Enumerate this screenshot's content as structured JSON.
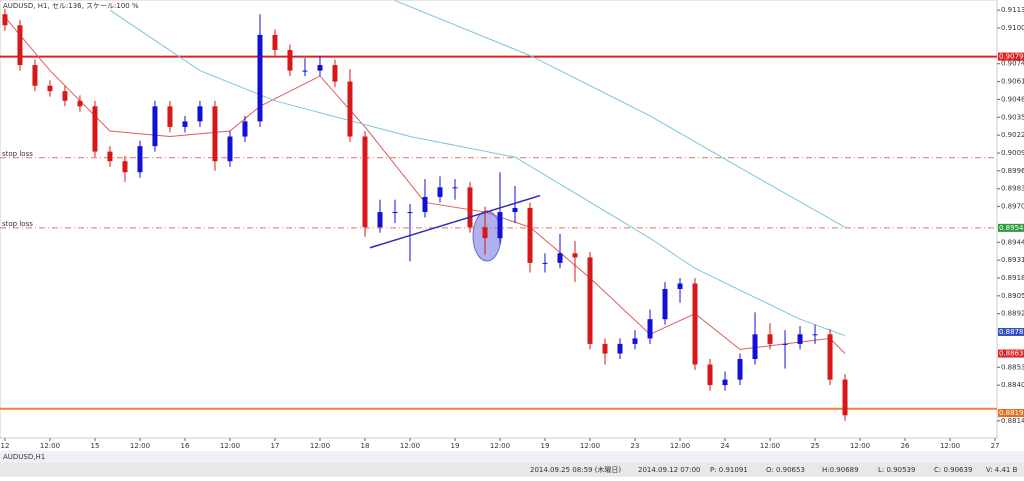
{
  "header": "AUDUSD, H1, セル:136, スケール:100 %",
  "tab": "AUDUSD,H1",
  "status": [
    "2014.09.25 08:59 (木曜日)",
    "2014.09.12 07:00",
    "P: 0.91091",
    "O: 0.90653",
    "H:0.90689",
    "L: 0.90539",
    "C: 0.90639",
    "V: 4.41 B"
  ],
  "chart_data": {
    "type": "candlestick",
    "xlim": [
      -0.33,
      66.13
    ],
    "ylim": [
      0.88015,
      0.91204
    ],
    "up_color": "#1010d8",
    "down_color": "#d81818",
    "xticks": [
      {
        "value": 0,
        "label": "12"
      },
      {
        "value": 3,
        "label": "12:00"
      },
      {
        "value": 6,
        "label": "15"
      },
      {
        "value": 9,
        "label": "12:00"
      },
      {
        "value": 12,
        "label": "16"
      },
      {
        "value": 15,
        "label": "12:00"
      },
      {
        "value": 18,
        "label": "17"
      },
      {
        "value": 21,
        "label": "12:00"
      },
      {
        "value": 24,
        "label": "18"
      },
      {
        "value": 27,
        "label": "12:00"
      },
      {
        "value": 30,
        "label": "19"
      },
      {
        "value": 33,
        "label": "12:00"
      },
      {
        "value": 36,
        "label": "19"
      },
      {
        "value": 39,
        "label": "12:00"
      },
      {
        "value": 42,
        "label": "23"
      },
      {
        "value": 45,
        "label": "12:00"
      },
      {
        "value": 48,
        "label": "24"
      },
      {
        "value": 51,
        "label": "12:00"
      },
      {
        "value": 54,
        "label": "25"
      },
      {
        "value": 57,
        "label": "12:00"
      },
      {
        "value": 60,
        "label": "26"
      },
      {
        "value": 63,
        "label": "12:00"
      },
      {
        "value": 66,
        "label": "27"
      }
    ],
    "yticks": [
      {
        "value": 0.9113,
        "label": "0.91130"
      },
      {
        "value": 0.91,
        "label": "0.91000"
      },
      {
        "value": 0.9074,
        "label": "0.90740"
      },
      {
        "value": 0.9061,
        "label": "0.90610"
      },
      {
        "value": 0.9048,
        "label": "0.90480"
      },
      {
        "value": 0.9035,
        "label": "0.90350"
      },
      {
        "value": 0.9022,
        "label": "0.90220"
      },
      {
        "value": 0.9009,
        "label": "0.90090"
      },
      {
        "value": 0.8996,
        "label": "0.89960"
      },
      {
        "value": 0.8983,
        "label": "0.89830"
      },
      {
        "value": 0.897,
        "label": "0.89700"
      },
      {
        "value": 0.8944,
        "label": "0.89440"
      },
      {
        "value": 0.8931,
        "label": "0.89310"
      },
      {
        "value": 0.8918,
        "label": "0.89180"
      },
      {
        "value": 0.8905,
        "label": "0.89050"
      },
      {
        "value": 0.8892,
        "label": "0.88920"
      },
      {
        "value": 0.8853,
        "label": "0.88530"
      },
      {
        "value": 0.884,
        "label": "0.88400"
      },
      {
        "value": 0.8814,
        "label": "0.88140"
      }
    ],
    "candles": [
      [
        0.911,
        0.9114,
        0.9098,
        0.9102
      ],
      [
        0.9102,
        0.9106,
        0.9069,
        0.9073
      ],
      [
        0.9073,
        0.9077,
        0.9054,
        0.9058
      ],
      [
        0.9058,
        0.9062,
        0.905,
        0.9054
      ],
      [
        0.9054,
        0.9058,
        0.9043,
        0.9047
      ],
      [
        0.9047,
        0.9051,
        0.9039,
        0.9043
      ],
      [
        0.9043,
        0.9047,
        0.9006,
        0.901
      ],
      [
        0.901,
        0.9014,
        0.8999,
        0.9003
      ],
      [
        0.9003,
        0.9007,
        0.8988,
        0.8995
      ],
      [
        0.8995,
        0.9018,
        0.8991,
        0.9014
      ],
      [
        0.9014,
        0.9047,
        0.901,
        0.9043
      ],
      [
        0.9043,
        0.9047,
        0.9024,
        0.9028
      ],
      [
        0.9028,
        0.9036,
        0.9024,
        0.9032
      ],
      [
        0.9032,
        0.9047,
        0.9028,
        0.9043
      ],
      [
        0.9043,
        0.9047,
        0.8996,
        0.9003
      ],
      [
        0.9003,
        0.9025,
        0.8999,
        0.9021
      ],
      [
        0.9021,
        0.9036,
        0.9017,
        0.9032
      ],
      [
        0.9032,
        0.911,
        0.9028,
        0.9095
      ],
      [
        0.9095,
        0.9099,
        0.908,
        0.9084
      ],
      [
        0.9084,
        0.9088,
        0.9065,
        0.9069
      ],
      [
        0.9069,
        0.9078,
        0.9065,
        0.9069
      ],
      [
        0.9069,
        0.908,
        0.9065,
        0.9073
      ],
      [
        0.9073,
        0.9077,
        0.9057,
        0.9061
      ],
      [
        0.9061,
        0.907,
        0.9017,
        0.9021
      ],
      [
        0.9021,
        0.9025,
        0.8948,
        0.8955
      ],
      [
        0.8955,
        0.8975,
        0.8951,
        0.8966
      ],
      [
        0.8966,
        0.8975,
        0.8958,
        0.8966
      ],
      [
        0.8966,
        0.8972,
        0.893,
        0.8966
      ],
      [
        0.8966,
        0.899,
        0.8962,
        0.8977
      ],
      [
        0.8977,
        0.8992,
        0.8973,
        0.8984
      ],
      [
        0.8984,
        0.899,
        0.8975,
        0.8984
      ],
      [
        0.8984,
        0.8988,
        0.8951,
        0.8955
      ],
      [
        0.8955,
        0.897,
        0.8935,
        0.8947
      ],
      [
        0.8947,
        0.8995,
        0.8943,
        0.8966
      ],
      [
        0.8966,
        0.8985,
        0.8958,
        0.8969
      ],
      [
        0.8969,
        0.8973,
        0.8922,
        0.8929
      ],
      [
        0.8929,
        0.8936,
        0.8922,
        0.8929
      ],
      [
        0.8929,
        0.895,
        0.8925,
        0.8936
      ],
      [
        0.8936,
        0.8945,
        0.8915,
        0.8933
      ],
      [
        0.8933,
        0.8937,
        0.8866,
        0.887
      ],
      [
        0.887,
        0.8874,
        0.8855,
        0.8863
      ],
      [
        0.8863,
        0.8874,
        0.8859,
        0.887
      ],
      [
        0.887,
        0.888,
        0.8866,
        0.8874
      ],
      [
        0.8874,
        0.8895,
        0.887,
        0.8888
      ],
      [
        0.8888,
        0.8915,
        0.8884,
        0.891
      ],
      [
        0.891,
        0.8918,
        0.89,
        0.8914
      ],
      [
        0.8914,
        0.8918,
        0.8851,
        0.8855
      ],
      [
        0.8855,
        0.8859,
        0.8836,
        0.884
      ],
      [
        0.884,
        0.885,
        0.8836,
        0.8844
      ],
      [
        0.8844,
        0.8863,
        0.884,
        0.8859
      ],
      [
        0.8859,
        0.8893,
        0.8855,
        0.8877
      ],
      [
        0.8877,
        0.8885,
        0.8866,
        0.887
      ],
      [
        0.887,
        0.888,
        0.8852,
        0.887
      ],
      [
        0.887,
        0.8883,
        0.8866,
        0.8877
      ],
      [
        0.8877,
        0.8884,
        0.887,
        0.8877
      ],
      [
        0.8877,
        0.8881,
        0.884,
        0.8844
      ],
      [
        0.8844,
        0.8848,
        0.8814,
        0.8818
      ]
    ],
    "indicators": [
      {
        "color": "#e05a5a",
        "x": [
          0,
          3,
          7,
          11,
          15,
          17,
          21,
          24,
          28,
          32,
          35,
          39,
          43,
          46,
          49,
          52,
          55,
          56
        ],
        "values": [
          0.9108,
          0.9069,
          0.9025,
          0.9021,
          0.9025,
          0.9043,
          0.9065,
          0.9028,
          0.8973,
          0.8966,
          0.8955,
          0.8918,
          0.8877,
          0.8892,
          0.8866,
          0.887,
          0.8874,
          0.8863
        ]
      },
      {
        "color": "#7cc4dc",
        "x": [
          7,
          13,
          18,
          27,
          34,
          43,
          46,
          53,
          56
        ],
        "values": [
          0.9113,
          0.9069,
          0.9047,
          0.9021,
          0.9006,
          0.8947,
          0.8925,
          0.8888,
          0.8876
        ]
      },
      {
        "color": "#7cc4dc",
        "x": [
          26,
          35,
          43,
          50,
          56
        ],
        "values": [
          0.912,
          0.908,
          0.9036,
          0.8992,
          0.8955
        ]
      }
    ],
    "trendline": {
      "color": "#2a2ab8",
      "x": [
        24.33,
        35.67
      ],
      "values": [
        0.894,
        0.8978
      ]
    },
    "levels": [
      {
        "value": 0.90792,
        "color": "#e02020",
        "dashed": false
      },
      {
        "value": 0.90055,
        "color": "#e07070",
        "dashed": true,
        "label": "stop loss"
      },
      {
        "value": 0.89545,
        "color": "#e07070",
        "dashed": true,
        "label": "stop loss"
      },
      {
        "value": 0.88228,
        "color": "#f08040",
        "dashed": false
      }
    ],
    "price_tags": [
      {
        "value": 0.90792,
        "label": "0.90792",
        "color": "#e02020"
      },
      {
        "value": 0.89545,
        "label": "0.89545",
        "color": "#2a9a3a"
      },
      {
        "value": 0.88787,
        "label": "0.88787",
        "color": "#3050c0"
      },
      {
        "value": 0.8863,
        "label": "0.88630",
        "color": "#e02020"
      },
      {
        "value": 0.88197,
        "label": "0.88197",
        "color": "#e07020"
      }
    ]
  }
}
